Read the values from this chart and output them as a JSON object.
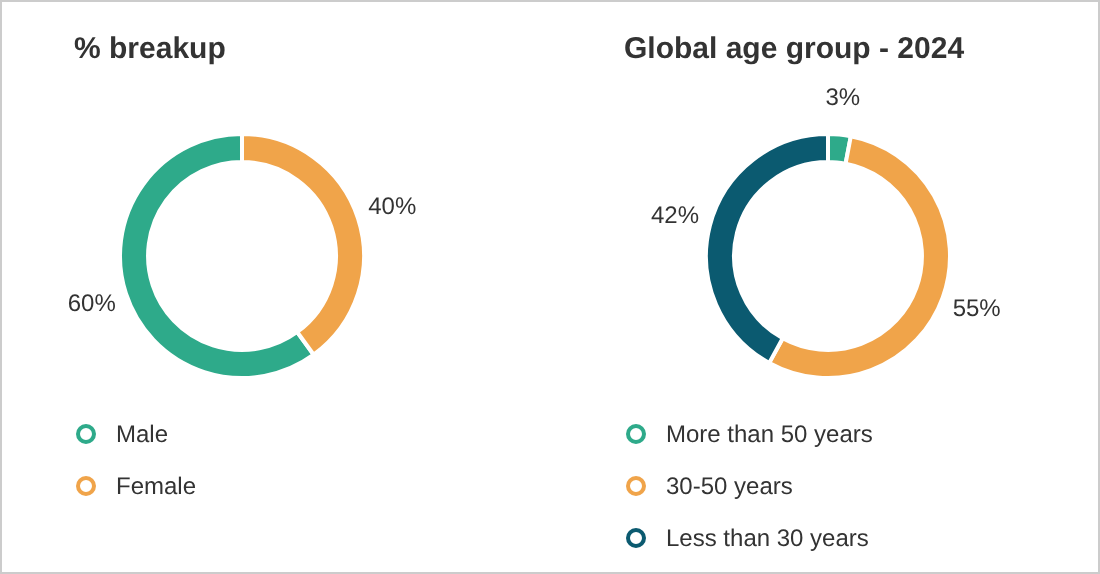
{
  "chart_data": [
    {
      "type": "donut",
      "title": "% breakup",
      "categories": [
        "Male",
        "Female"
      ],
      "values": [
        60,
        40
      ],
      "colors": [
        "#2eaa8a",
        "#f0a44a"
      ],
      "legend": "bottom",
      "value_labels": [
        "60%",
        "40%"
      ]
    },
    {
      "type": "donut",
      "title": "Global age group - 2024",
      "categories": [
        "More than 50 years",
        "30-50 years",
        "Less than 30 years"
      ],
      "values": [
        3,
        55,
        42
      ],
      "colors": [
        "#2eaa8a",
        "#f0a44a",
        "#0b5a70"
      ],
      "legend": "bottom",
      "value_labels": [
        "3%",
        "55%",
        "42%"
      ]
    }
  ]
}
